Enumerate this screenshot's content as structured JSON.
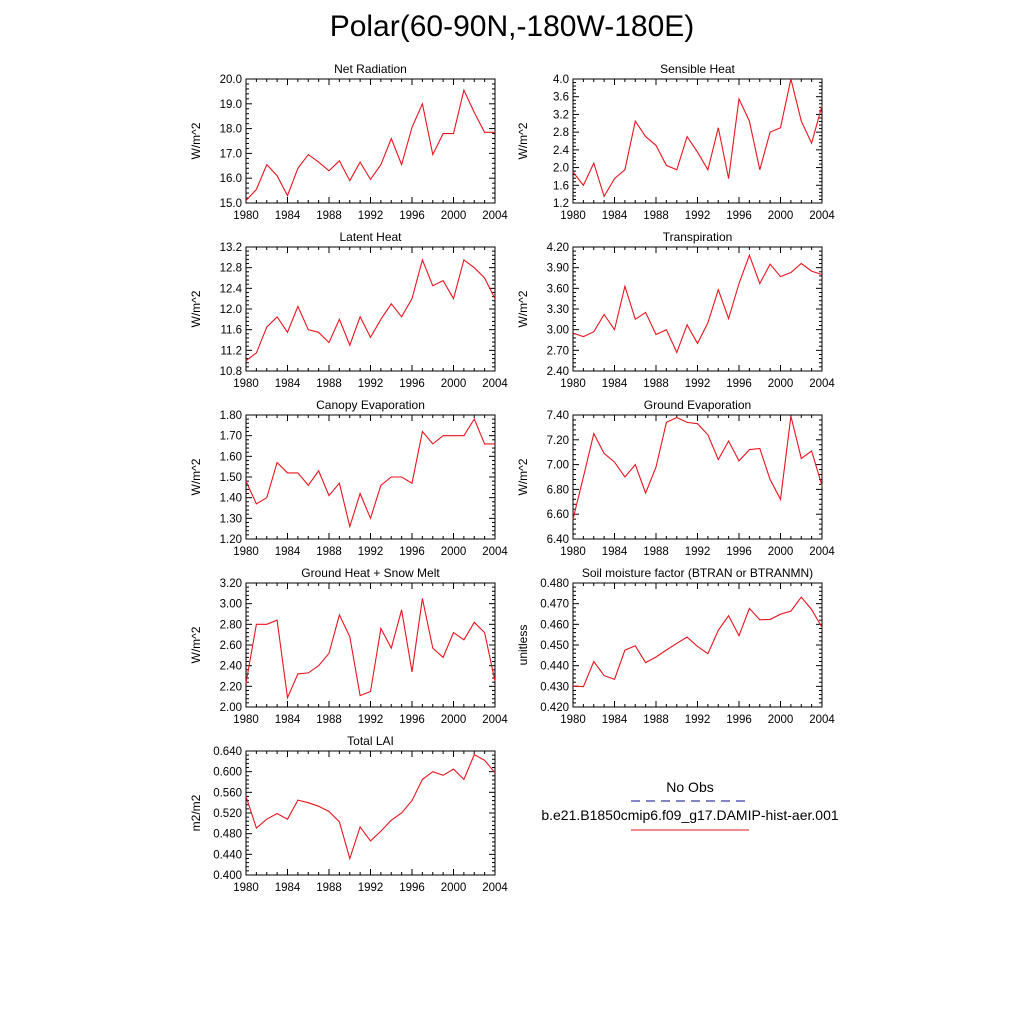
{
  "title": "Polar(60-90N,-180W-180E)",
  "legend": {
    "obs_label": "No Obs",
    "model_label": "b.e21.B1850cmip6.f09_g17.DAMIP-hist-aer.001",
    "obs_color": "#3a3aa8",
    "model_color": "#e8141e"
  },
  "chart_data": [
    {
      "type": "line",
      "title": "Net Radiation",
      "ylabel": "W/m^2",
      "xlim": [
        1980,
        2004
      ],
      "ylim": [
        15.0,
        20.0
      ],
      "xticks": [
        "1980",
        "1984",
        "1988",
        "1992",
        "1996",
        "2000",
        "2004"
      ],
      "yticks": [
        "15.0",
        "16.0",
        "17.0",
        "18.0",
        "19.0",
        "20.0"
      ],
      "x": [
        1980,
        1981,
        1982,
        1983,
        1984,
        1985,
        1986,
        1987,
        1988,
        1989,
        1990,
        1991,
        1992,
        1993,
        1994,
        1995,
        1996,
        1997,
        1998,
        1999,
        2000,
        2001,
        2002,
        2003,
        2004
      ],
      "series": [
        {
          "values": [
            15.1,
            15.55,
            16.55,
            16.1,
            15.3,
            16.4,
            16.95,
            16.65,
            16.3,
            16.7,
            15.9,
            16.65,
            15.95,
            16.55,
            17.6,
            16.55,
            18.05,
            19.0,
            16.95,
            17.8,
            17.8,
            19.55,
            18.65,
            17.85,
            17.85
          ]
        }
      ]
    },
    {
      "type": "line",
      "title": "Sensible Heat",
      "ylabel": "W/m^2",
      "xlim": [
        1980,
        2004
      ],
      "ylim": [
        1.2,
        4.0
      ],
      "xticks": [
        "1980",
        "1984",
        "1988",
        "1992",
        "1996",
        "2000",
        "2004"
      ],
      "yticks": [
        "1.2",
        "1.6",
        "2.0",
        "2.4",
        "2.8",
        "3.2",
        "3.6",
        "4.0"
      ],
      "x": [
        1980,
        1981,
        1982,
        1983,
        1984,
        1985,
        1986,
        1987,
        1988,
        1989,
        1990,
        1991,
        1992,
        1993,
        1994,
        1995,
        1996,
        1997,
        1998,
        1999,
        2000,
        2001,
        2002,
        2003,
        2004
      ],
      "series": [
        {
          "values": [
            1.9,
            1.6,
            2.1,
            1.35,
            1.75,
            1.95,
            3.05,
            2.7,
            2.5,
            2.05,
            1.95,
            2.7,
            2.35,
            1.95,
            2.9,
            1.75,
            3.55,
            3.05,
            1.95,
            2.8,
            2.9,
            4.0,
            3.05,
            2.55,
            3.4
          ]
        }
      ]
    },
    {
      "type": "line",
      "title": "Latent Heat",
      "ylabel": "W/m^2",
      "xlim": [
        1980,
        2004
      ],
      "ylim": [
        10.8,
        13.2
      ],
      "xticks": [
        "1980",
        "1984",
        "1988",
        "1992",
        "1996",
        "2000",
        "2004"
      ],
      "yticks": [
        "10.8",
        "11.2",
        "11.6",
        "12.0",
        "12.4",
        "12.8",
        "13.2"
      ],
      "x": [
        1980,
        1981,
        1982,
        1983,
        1984,
        1985,
        1986,
        1987,
        1988,
        1989,
        1990,
        1991,
        1992,
        1993,
        1994,
        1995,
        1996,
        1997,
        1998,
        1999,
        2000,
        2001,
        2002,
        2003,
        2004
      ],
      "series": [
        {
          "values": [
            11.0,
            11.15,
            11.65,
            11.85,
            11.55,
            12.05,
            11.6,
            11.55,
            11.35,
            11.8,
            11.3,
            11.85,
            11.45,
            11.8,
            12.1,
            11.85,
            12.2,
            12.95,
            12.45,
            12.55,
            12.2,
            12.95,
            12.8,
            12.6,
            12.2
          ]
        }
      ]
    },
    {
      "type": "line",
      "title": "Transpiration",
      "ylabel": "W/m^2",
      "xlim": [
        1980,
        2004
      ],
      "ylim": [
        2.4,
        4.2
      ],
      "xticks": [
        "1980",
        "1984",
        "1988",
        "1992",
        "1996",
        "2000",
        "2004"
      ],
      "yticks": [
        "2.40",
        "2.70",
        "3.00",
        "3.30",
        "3.60",
        "3.90",
        "4.20"
      ],
      "x": [
        1980,
        1981,
        1982,
        1983,
        1984,
        1985,
        1986,
        1987,
        1988,
        1989,
        1990,
        1991,
        1992,
        1993,
        1994,
        1995,
        1996,
        1997,
        1998,
        1999,
        2000,
        2001,
        2002,
        2003,
        2004
      ],
      "series": [
        {
          "values": [
            2.95,
            2.9,
            2.97,
            3.22,
            3.0,
            3.63,
            3.15,
            3.25,
            2.93,
            3.0,
            2.67,
            3.07,
            2.8,
            3.1,
            3.58,
            3.16,
            3.67,
            4.08,
            3.67,
            3.95,
            3.77,
            3.83,
            3.96,
            3.85,
            3.8
          ]
        }
      ]
    },
    {
      "type": "line",
      "title": "Canopy Evaporation",
      "ylabel": "W/m^2",
      "xlim": [
        1980,
        2004
      ],
      "ylim": [
        1.2,
        1.8
      ],
      "xticks": [
        "1980",
        "1984",
        "1988",
        "1992",
        "1996",
        "2000",
        "2004"
      ],
      "yticks": [
        "1.20",
        "1.30",
        "1.40",
        "1.50",
        "1.60",
        "1.70",
        "1.80"
      ],
      "x": [
        1980,
        1981,
        1982,
        1983,
        1984,
        1985,
        1986,
        1987,
        1988,
        1989,
        1990,
        1991,
        1992,
        1993,
        1994,
        1995,
        1996,
        1997,
        1998,
        1999,
        2000,
        2001,
        2002,
        2003,
        2004
      ],
      "series": [
        {
          "values": [
            1.48,
            1.37,
            1.4,
            1.57,
            1.52,
            1.52,
            1.46,
            1.53,
            1.41,
            1.47,
            1.26,
            1.42,
            1.3,
            1.46,
            1.5,
            1.5,
            1.47,
            1.72,
            1.66,
            1.7,
            1.7,
            1.7,
            1.78,
            1.66,
            1.66
          ]
        }
      ]
    },
    {
      "type": "line",
      "title": "Ground Evaporation",
      "ylabel": "W/m^2",
      "xlim": [
        1980,
        2004
      ],
      "ylim": [
        6.4,
        7.4
      ],
      "xticks": [
        "1980",
        "1984",
        "1988",
        "1992",
        "1996",
        "2000",
        "2004"
      ],
      "yticks": [
        "6.40",
        "6.60",
        "6.80",
        "7.00",
        "7.20",
        "7.40"
      ],
      "x": [
        1980,
        1981,
        1982,
        1983,
        1984,
        1985,
        1986,
        1987,
        1988,
        1989,
        1990,
        1991,
        1992,
        1993,
        1994,
        1995,
        1996,
        1997,
        1998,
        1999,
        2000,
        2001,
        2002,
        2003,
        2004
      ],
      "series": [
        {
          "values": [
            6.56,
            6.9,
            7.25,
            7.09,
            7.02,
            6.9,
            7.0,
            6.77,
            6.98,
            7.34,
            7.38,
            7.34,
            7.33,
            7.24,
            7.04,
            7.19,
            7.03,
            7.12,
            7.13,
            6.88,
            6.72,
            7.39,
            7.05,
            7.11,
            6.83
          ]
        }
      ]
    },
    {
      "type": "line",
      "title": "Ground Heat + Snow Melt",
      "ylabel": "W/m^2",
      "xlim": [
        1980,
        2004
      ],
      "ylim": [
        2.0,
        3.2
      ],
      "xticks": [
        "1980",
        "1984",
        "1988",
        "1992",
        "1996",
        "2000",
        "2004"
      ],
      "yticks": [
        "2.00",
        "2.20",
        "2.40",
        "2.60",
        "2.80",
        "3.00",
        "3.20"
      ],
      "x": [
        1980,
        1981,
        1982,
        1983,
        1984,
        1985,
        1986,
        1987,
        1988,
        1989,
        1990,
        1991,
        1992,
        1993,
        1994,
        1995,
        1996,
        1997,
        1998,
        1999,
        2000,
        2001,
        2002,
        2003,
        2004
      ],
      "series": [
        {
          "values": [
            2.23,
            2.8,
            2.8,
            2.84,
            2.09,
            2.32,
            2.33,
            2.4,
            2.52,
            2.89,
            2.68,
            2.11,
            2.15,
            2.76,
            2.57,
            2.94,
            2.34,
            3.05,
            2.57,
            2.48,
            2.72,
            2.65,
            2.82,
            2.72,
            2.25
          ]
        }
      ]
    },
    {
      "type": "line",
      "title": "Soil moisture factor (BTRAN or BTRANMN)",
      "ylabel": "unitless",
      "xlim": [
        1980,
        2004
      ],
      "ylim": [
        0.42,
        0.48
      ],
      "xticks": [
        "1980",
        "1984",
        "1988",
        "1992",
        "1996",
        "2000",
        "2004"
      ],
      "yticks": [
        "0.420",
        "0.430",
        "0.440",
        "0.450",
        "0.460",
        "0.470",
        "0.480"
      ],
      "x": [
        1980,
        1981,
        1982,
        1983,
        1984,
        1985,
        1986,
        1987,
        1988,
        1989,
        1990,
        1991,
        1992,
        1993,
        1994,
        1995,
        1996,
        1997,
        1998,
        1999,
        2000,
        2001,
        2002,
        2003,
        2004
      ],
      "series": [
        {
          "values": [
            0.4302,
            0.4298,
            0.442,
            0.4352,
            0.4334,
            0.4475,
            0.4496,
            0.4415,
            0.4442,
            0.4476,
            0.4508,
            0.4538,
            0.4493,
            0.4458,
            0.4571,
            0.4642,
            0.4545,
            0.4677,
            0.4622,
            0.4624,
            0.4649,
            0.4664,
            0.4732,
            0.4672,
            0.4585
          ]
        }
      ]
    },
    {
      "type": "line",
      "title": "Total LAI",
      "ylabel": "m2/m2",
      "xlim": [
        1980,
        2004
      ],
      "ylim": [
        0.4,
        0.64
      ],
      "xticks": [
        "1980",
        "1984",
        "1988",
        "1992",
        "1996",
        "2000",
        "2004"
      ],
      "yticks": [
        "0.400",
        "0.440",
        "0.480",
        "0.520",
        "0.560",
        "0.600",
        "0.640"
      ],
      "x": [
        1980,
        1981,
        1982,
        1983,
        1984,
        1985,
        1986,
        1987,
        1988,
        1989,
        1990,
        1991,
        1992,
        1993,
        1994,
        1995,
        1996,
        1997,
        1998,
        1999,
        2000,
        2001,
        2002,
        2003,
        2004
      ],
      "series": [
        {
          "values": [
            0.552,
            0.491,
            0.508,
            0.519,
            0.508,
            0.545,
            0.54,
            0.533,
            0.523,
            0.503,
            0.432,
            0.493,
            0.466,
            0.485,
            0.506,
            0.52,
            0.544,
            0.585,
            0.6,
            0.593,
            0.605,
            0.585,
            0.633,
            0.622,
            0.598
          ]
        }
      ]
    }
  ]
}
